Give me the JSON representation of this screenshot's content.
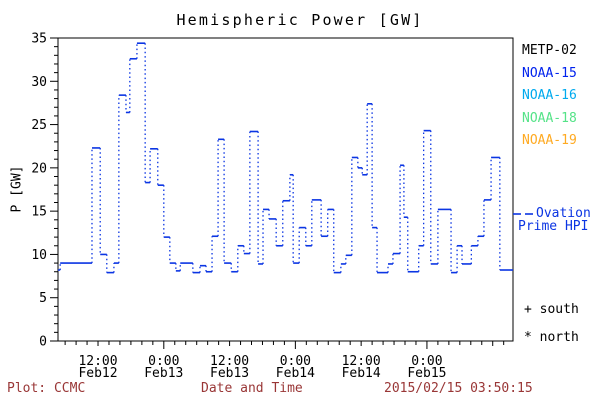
{
  "title": "Hemispheric Power [GW]",
  "footer": {
    "left": "Plot: CCMC",
    "center": "Date and Time",
    "right": "2015/02/15 03:50:15"
  },
  "colors": {
    "axis": "#000000",
    "line": "#0b35e3",
    "footer_text": "#993636",
    "metp02": "#000000",
    "noaa15": "#0022ee",
    "noaa16": "#00aaee",
    "noaa18": "#55e388",
    "noaa19": "#ffaa22"
  },
  "legend": {
    "satellites": [
      {
        "label": "METP-02",
        "color_key": "metp02"
      },
      {
        "label": "NOAA-15",
        "color_key": "noaa15"
      },
      {
        "label": "NOAA-16",
        "color_key": "noaa16"
      },
      {
        "label": "NOAA-18",
        "color_key": "noaa18"
      },
      {
        "label": "NOAA-19",
        "color_key": "noaa19"
      }
    ],
    "model_line1": "Ovation",
    "model_line2": "Prime HPI",
    "model_full_label": "Ovation Prime HPI",
    "south_label": "+ south",
    "north_label": "* north"
  },
  "chart_data": {
    "type": "line",
    "style": "step plot, solid horizontal levels with dotted vertical risers, blue",
    "title": "Hemispheric Power [GW]",
    "xlabel": "Date and Time",
    "ylabel": "P [GW]",
    "ylim": [
      0,
      35
    ],
    "y_major_ticks": [
      0,
      5,
      10,
      15,
      20,
      25,
      30,
      35
    ],
    "y_minor_step": 1,
    "x_minor_step_hours": 2,
    "t_range_hours": [
      4.7,
      87.7
    ],
    "t_reference": "hours since 2015-02-12 00:00",
    "x_tick_labels": [
      {
        "t": 12,
        "time": "12:00",
        "date": "Feb12"
      },
      {
        "t": 24,
        "time": "0:00",
        "date": "Feb13"
      },
      {
        "t": 36,
        "time": "12:00",
        "date": "Feb13"
      },
      {
        "t": 48,
        "time": "0:00",
        "date": "Feb14"
      },
      {
        "t": 60,
        "time": "12:00",
        "date": "Feb14"
      },
      {
        "t": 72,
        "time": "0:00",
        "date": "Feb15"
      }
    ],
    "grid": false,
    "legend_position": "right",
    "series": [
      {
        "name": "Ovation Prime HPI",
        "units": "GW",
        "steps": [
          [
            4.7,
            8.2
          ],
          [
            5.1,
            9.0
          ],
          [
            10.9,
            22.3
          ],
          [
            12.4,
            10.0
          ],
          [
            13.6,
            7.9
          ],
          [
            14.9,
            9.0
          ],
          [
            15.8,
            28.4
          ],
          [
            17.1,
            26.4
          ],
          [
            17.8,
            32.6
          ],
          [
            19.1,
            34.4
          ],
          [
            20.6,
            18.3
          ],
          [
            21.5,
            22.2
          ],
          [
            22.9,
            18.0
          ],
          [
            24.0,
            12.0
          ],
          [
            25.1,
            9.0
          ],
          [
            26.2,
            8.1
          ],
          [
            27.0,
            9.0
          ],
          [
            29.3,
            7.9
          ],
          [
            30.6,
            8.7
          ],
          [
            31.7,
            8.0
          ],
          [
            32.8,
            12.1
          ],
          [
            33.9,
            23.3
          ],
          [
            35.0,
            9.0
          ],
          [
            36.3,
            8.0
          ],
          [
            37.5,
            11.0
          ],
          [
            38.6,
            10.1
          ],
          [
            39.7,
            24.2
          ],
          [
            41.2,
            8.9
          ],
          [
            42.1,
            15.2
          ],
          [
            43.2,
            14.1
          ],
          [
            44.5,
            11.0
          ],
          [
            45.7,
            16.2
          ],
          [
            47.0,
            19.2
          ],
          [
            47.6,
            9.0
          ],
          [
            48.7,
            13.1
          ],
          [
            49.9,
            11.0
          ],
          [
            51.0,
            16.3
          ],
          [
            52.7,
            12.1
          ],
          [
            53.9,
            15.2
          ],
          [
            55.0,
            7.9
          ],
          [
            56.3,
            8.9
          ],
          [
            57.2,
            9.9
          ],
          [
            58.3,
            21.2
          ],
          [
            59.4,
            20.0
          ],
          [
            60.2,
            19.2
          ],
          [
            61.1,
            27.4
          ],
          [
            62.0,
            13.1
          ],
          [
            62.9,
            7.9
          ],
          [
            64.9,
            8.9
          ],
          [
            65.8,
            10.1
          ],
          [
            67.1,
            20.3
          ],
          [
            67.8,
            14.3
          ],
          [
            68.5,
            8.0
          ],
          [
            70.5,
            11.0
          ],
          [
            71.4,
            24.3
          ],
          [
            72.7,
            8.9
          ],
          [
            74.0,
            15.2
          ],
          [
            76.4,
            7.9
          ],
          [
            77.5,
            11.0
          ],
          [
            78.4,
            8.9
          ],
          [
            80.1,
            11.0
          ],
          [
            81.3,
            12.1
          ],
          [
            82.4,
            16.3
          ],
          [
            83.7,
            21.2
          ],
          [
            85.3,
            8.2
          ]
        ]
      }
    ]
  }
}
